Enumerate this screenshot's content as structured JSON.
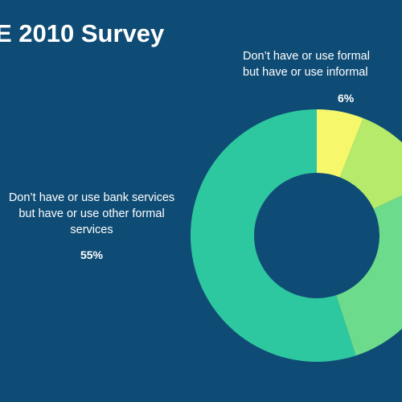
{
  "title": "E 2010 Survey",
  "chart_data": {
    "type": "pie",
    "donut": true,
    "slices": [
      {
        "label_lines": [
          "Don’t have or use formal",
          "but have or use informal"
        ],
        "value": 6,
        "value_label": "6%",
        "color": "#f6f76b"
      },
      {
        "label_lines": [],
        "value": 12,
        "value_label": "",
        "color": "#b5ea6a"
      },
      {
        "label_lines": [],
        "value": 27,
        "value_label": "",
        "color": "#6cdb8b"
      },
      {
        "label_lines": [
          "Don’t have or use bank services",
          "but have or use other formal",
          "services"
        ],
        "value": 55,
        "value_label": "55%",
        "color": "#2ec8a0"
      }
    ],
    "start_angle_deg": 0,
    "direction": "clockwise",
    "legend": "none"
  }
}
